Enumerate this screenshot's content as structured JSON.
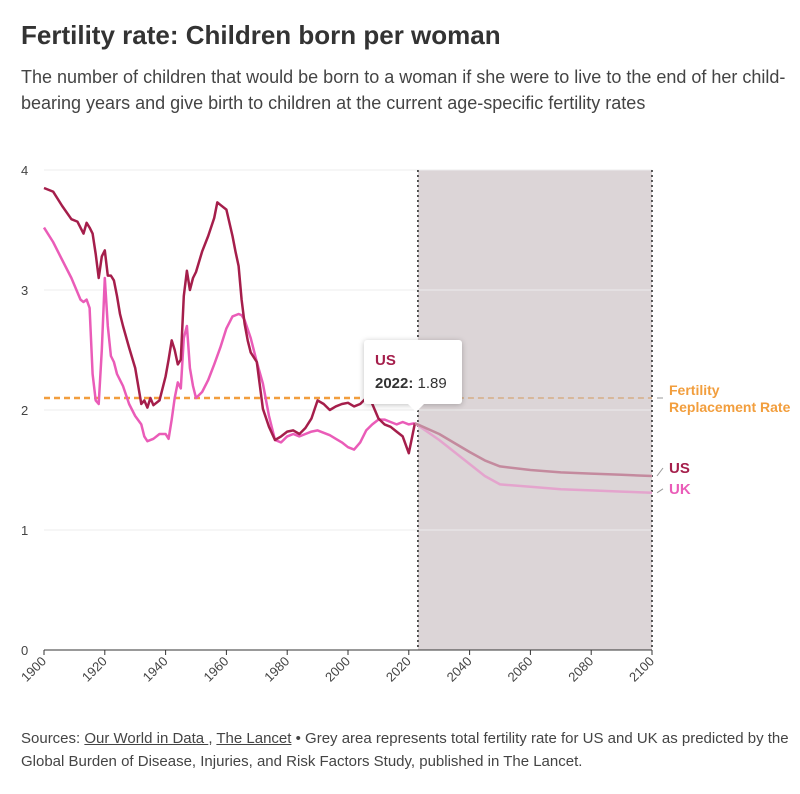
{
  "chart_data": {
    "type": "line",
    "title": "Fertility rate: Children born per woman",
    "subtitle": "The number of children that would be born to a woman if she were to live to the end of her child-bearing years and give birth to children at the current age-specific fertility rates",
    "xlabel": "",
    "ylabel": "",
    "xlim": [
      1900,
      2100
    ],
    "ylim": [
      0,
      4
    ],
    "x_ticks": [
      1900,
      1920,
      1940,
      1960,
      1980,
      2000,
      2020,
      2040,
      2060,
      2080,
      2100
    ],
    "y_ticks": [
      0,
      1,
      2,
      3,
      4
    ],
    "projection_shaded_range": [
      2023,
      2100
    ],
    "series": [
      {
        "name": "US",
        "color": "#a51e4b",
        "projection_color": "#c48a9e",
        "historical": {
          "x": [
            1900,
            1903,
            1906,
            1909,
            1911,
            1913,
            1914,
            1915,
            1916,
            1917,
            1918,
            1919,
            1920,
            1921,
            1922,
            1923,
            1924,
            1925,
            1926,
            1928,
            1930,
            1932,
            1933,
            1934,
            1935,
            1936,
            1938,
            1940,
            1941,
            1942,
            1943,
            1944,
            1945,
            1946,
            1947,
            1948,
            1949,
            1950,
            1952,
            1954,
            1956,
            1957,
            1958,
            1960,
            1962,
            1963,
            1964,
            1965,
            1966,
            1967,
            1968,
            1970,
            1972,
            1974,
            1976,
            1978,
            1980,
            1982,
            1984,
            1986,
            1988,
            1990,
            1992,
            1994,
            1996,
            1998,
            2000,
            2002,
            2004,
            2006,
            2007,
            2008,
            2010,
            2012,
            2014,
            2016,
            2018,
            2020,
            2022
          ],
          "y": [
            3.85,
            3.82,
            3.7,
            3.59,
            3.57,
            3.47,
            3.56,
            3.52,
            3.47,
            3.3,
            3.1,
            3.28,
            3.33,
            3.12,
            3.12,
            3.08,
            2.95,
            2.8,
            2.7,
            2.52,
            2.35,
            2.05,
            2.08,
            2.02,
            2.1,
            2.04,
            2.08,
            2.28,
            2.42,
            2.58,
            2.5,
            2.38,
            2.42,
            2.95,
            3.16,
            3.0,
            3.1,
            3.15,
            3.32,
            3.45,
            3.6,
            3.73,
            3.71,
            3.67,
            3.45,
            3.32,
            3.2,
            2.92,
            2.72,
            2.58,
            2.48,
            2.4,
            2.01,
            1.86,
            1.75,
            1.78,
            1.82,
            1.83,
            1.8,
            1.85,
            1.93,
            2.08,
            2.05,
            2.0,
            2.03,
            2.05,
            2.06,
            2.03,
            2.05,
            2.1,
            2.12,
            2.05,
            1.93,
            1.88,
            1.86,
            1.82,
            1.78,
            1.64,
            1.89
          ]
        },
        "projection": {
          "x": [
            2022,
            2030,
            2040,
            2045,
            2050,
            2060,
            2070,
            2080,
            2090,
            2100
          ],
          "y": [
            1.89,
            1.8,
            1.65,
            1.58,
            1.53,
            1.5,
            1.48,
            1.47,
            1.46,
            1.45
          ]
        }
      },
      {
        "name": "UK",
        "color": "#ea5cb8",
        "projection_color": "#e4a4cd",
        "historical": {
          "x": [
            1900,
            1903,
            1906,
            1909,
            1912,
            1913,
            1914,
            1915,
            1916,
            1917,
            1918,
            1919,
            1920,
            1921,
            1922,
            1923,
            1924,
            1926,
            1928,
            1930,
            1932,
            1933,
            1934,
            1936,
            1938,
            1940,
            1941,
            1942,
            1943,
            1944,
            1945,
            1946,
            1947,
            1948,
            1949,
            1950,
            1952,
            1954,
            1956,
            1958,
            1960,
            1962,
            1964,
            1965,
            1966,
            1968,
            1970,
            1972,
            1974,
            1976,
            1978,
            1980,
            1982,
            1984,
            1986,
            1988,
            1990,
            1992,
            1994,
            1996,
            1998,
            2000,
            2002,
            2004,
            2006,
            2008,
            2010,
            2012,
            2014,
            2016,
            2018,
            2020,
            2022
          ],
          "y": [
            3.52,
            3.4,
            3.25,
            3.1,
            2.92,
            2.9,
            2.92,
            2.85,
            2.3,
            2.08,
            2.05,
            2.5,
            3.1,
            2.7,
            2.45,
            2.4,
            2.3,
            2.2,
            2.05,
            1.95,
            1.88,
            1.78,
            1.74,
            1.76,
            1.8,
            1.8,
            1.76,
            1.92,
            2.1,
            2.23,
            2.18,
            2.6,
            2.7,
            2.35,
            2.2,
            2.1,
            2.15,
            2.25,
            2.38,
            2.52,
            2.68,
            2.78,
            2.8,
            2.79,
            2.75,
            2.6,
            2.4,
            2.22,
            1.95,
            1.75,
            1.73,
            1.78,
            1.8,
            1.78,
            1.8,
            1.82,
            1.83,
            1.81,
            1.79,
            1.76,
            1.73,
            1.69,
            1.67,
            1.73,
            1.83,
            1.88,
            1.92,
            1.92,
            1.9,
            1.88,
            1.9,
            1.88,
            1.89
          ]
        },
        "projection": {
          "x": [
            2022,
            2030,
            2040,
            2045,
            2050,
            2060,
            2070,
            2080,
            2090,
            2100
          ],
          "y": [
            1.89,
            1.75,
            1.55,
            1.45,
            1.38,
            1.36,
            1.34,
            1.33,
            1.32,
            1.31
          ]
        }
      }
    ],
    "reference_line": {
      "label": "Fertility Replacement Rate",
      "label_line1": "Fertility",
      "label_line2": "Replacement Rate",
      "value": 2.1,
      "color": "#f29e3d"
    },
    "end_labels": [
      {
        "text": "US",
        "series": "US",
        "value": 1.45
      },
      {
        "text": "UK",
        "series": "UK",
        "value": 1.31
      }
    ],
    "tooltip": {
      "series": "US",
      "year_label": "2022:",
      "value": "1.89",
      "x": 2022,
      "y": 1.89
    }
  },
  "footer": {
    "prefix": "Sources: ",
    "source1": "Our World in Data ",
    "comma": ", ",
    "source2": "The Lancet",
    "text": " • Grey area represents total fertility rate for US and UK as predicted by the Global Burden of Disease, Injuries, and Risk Factors Study, published in The Lancet."
  },
  "colors": {
    "shaded_area": "#dcd5d7",
    "axis": "#333333"
  }
}
